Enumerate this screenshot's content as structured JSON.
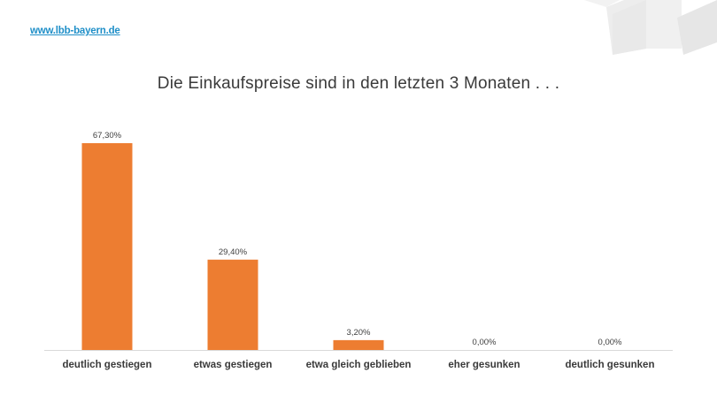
{
  "header": {
    "site_link": "www.lbb-bayern.de"
  },
  "colors": {
    "bar": "#ed7d31",
    "link": "#1f8fc8",
    "text": "#3a3a3a",
    "axis": "#d9d9d9",
    "decor": "#ececec"
  },
  "chart_data": {
    "type": "bar",
    "title": "Die Einkaufspreise sind in den letzten 3 Monaten . . .",
    "xlabel": "",
    "ylabel": "",
    "categories": [
      "deutlich gestiegen",
      "etwas gestiegen",
      "etwa gleich geblieben",
      "eher gesunken",
      "deutlich gesunken"
    ],
    "values": [
      67.3,
      29.4,
      3.2,
      0.0,
      0.0
    ],
    "data_labels": [
      "67,30%",
      "29,40%",
      "3,20%",
      "0,00%",
      "0,00%"
    ],
    "ylim": [
      0,
      67.3
    ],
    "grid": false,
    "legend": "none"
  }
}
